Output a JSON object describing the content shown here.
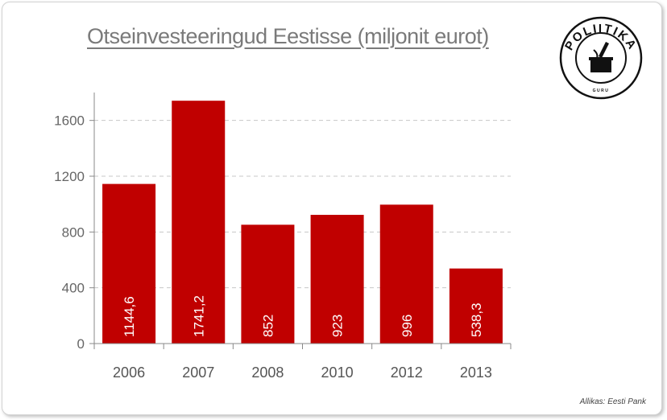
{
  "chart_data": {
    "type": "bar",
    "title": "Otseinvesteeringud Eestisse (miljonit eurot)",
    "categories": [
      "2006",
      "2007",
      "2008",
      "2010",
      "2012",
      "2013"
    ],
    "values": [
      1144.6,
      1741.2,
      852,
      923,
      996,
      538.3
    ],
    "data_labels": [
      "1144,6",
      "1741,2",
      "852",
      "923",
      "996",
      "538,3"
    ],
    "yticks": [
      0,
      400,
      800,
      1200,
      1600
    ],
    "ylim": [
      0,
      1800
    ],
    "grid": true,
    "bar_color": "#c00000",
    "xlabel": "",
    "ylabel": ""
  },
  "source": "Allikas: Eesti Pank",
  "logo": {
    "text": "POLIITIKA",
    "subtext": "GURU"
  }
}
